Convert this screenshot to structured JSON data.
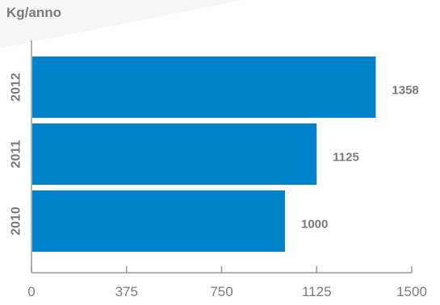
{
  "chart_data": {
    "type": "bar",
    "orientation": "horizontal",
    "unit_label": "Kg/anno",
    "categories": [
      "2012",
      "2011",
      "2010"
    ],
    "values": [
      1358,
      1125,
      1000
    ],
    "data_labels": [
      "1358",
      "1125",
      "1000"
    ],
    "x_ticks": [
      "0",
      "375",
      "750",
      "1125",
      "1500"
    ],
    "xlim": [
      0,
      1500
    ],
    "grid": false,
    "colors": {
      "bar": "#0082c8",
      "text": "#7a7a7a",
      "axis": "#9a9a9a"
    }
  }
}
